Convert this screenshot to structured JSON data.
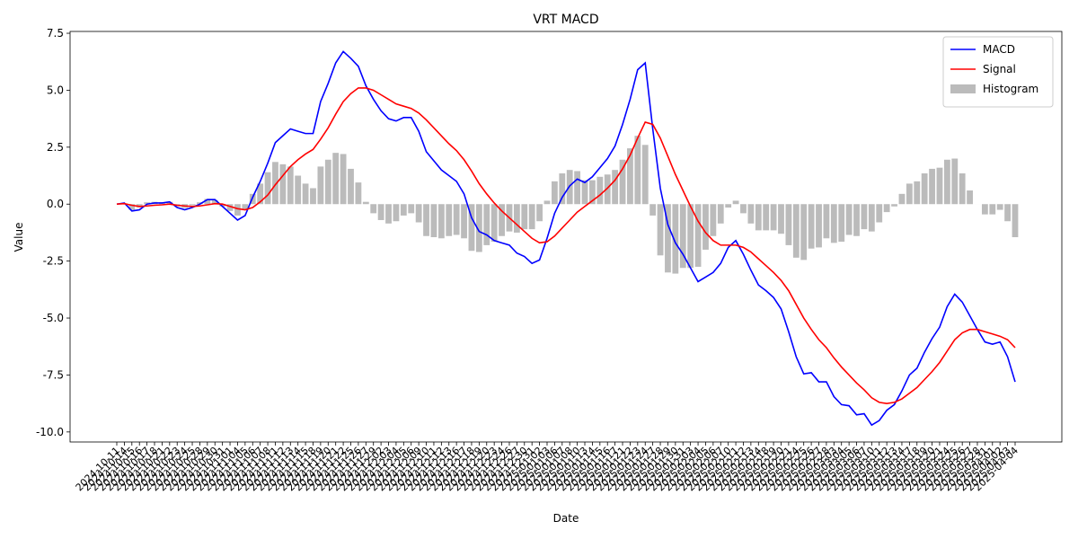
{
  "chart_data": {
    "type": "macd",
    "title": "VRT MACD",
    "x_label": "Date",
    "y_label": "Value",
    "categories": [
      "2024-10-11",
      "2024-10-14",
      "2024-10-15",
      "2024-10-16",
      "2024-10-17",
      "2024-10-18",
      "2024-10-21",
      "2024-10-22",
      "2024-10-23",
      "2024-10-24",
      "2024-10-25",
      "2024-10-28",
      "2024-10-29",
      "2024-10-30",
      "2024-10-31",
      "2024-11-01",
      "2024-11-04",
      "2024-11-05",
      "2024-11-06",
      "2024-11-07",
      "2024-11-08",
      "2024-11-11",
      "2024-11-12",
      "2024-11-13",
      "2024-11-14",
      "2024-11-15",
      "2024-11-18",
      "2024-11-19",
      "2024-11-20",
      "2024-11-21",
      "2024-11-22",
      "2024-11-25",
      "2024-11-26",
      "2024-11-27",
      "2024-11-29",
      "2024-12-02",
      "2024-12-03",
      "2024-12-04",
      "2024-12-05",
      "2024-12-06",
      "2024-12-09",
      "2024-12-10",
      "2024-12-11",
      "2024-12-12",
      "2024-12-13",
      "2024-12-16",
      "2024-12-17",
      "2024-12-18",
      "2024-12-19",
      "2024-12-20",
      "2024-12-23",
      "2024-12-24",
      "2024-12-26",
      "2024-12-27",
      "2024-12-30",
      "2024-12-31",
      "2025-01-02",
      "2025-01-03",
      "2025-01-06",
      "2025-01-07",
      "2025-01-08",
      "2025-01-10",
      "2025-01-13",
      "2025-01-14",
      "2025-01-15",
      "2025-01-16",
      "2025-01-17",
      "2025-01-21",
      "2025-01-22",
      "2025-01-23",
      "2025-01-24",
      "2025-01-27",
      "2025-01-28",
      "2025-01-29",
      "2025-01-30",
      "2025-01-31",
      "2025-02-03",
      "2025-02-04",
      "2025-02-05",
      "2025-02-06",
      "2025-02-07",
      "2025-02-10",
      "2025-02-11",
      "2025-02-12",
      "2025-02-13",
      "2025-02-14",
      "2025-02-18",
      "2025-02-19",
      "2025-02-20",
      "2025-02-21",
      "2025-02-24",
      "2025-02-25",
      "2025-02-26",
      "2025-02-27",
      "2025-02-28",
      "2025-03-03",
      "2025-03-04",
      "2025-03-05",
      "2025-03-06",
      "2025-03-07",
      "2025-03-10",
      "2025-03-11",
      "2025-03-12",
      "2025-03-13",
      "2025-03-14",
      "2025-03-17",
      "2025-03-18",
      "2025-03-19",
      "2025-03-20",
      "2025-03-21",
      "2025-03-24",
      "2025-03-25",
      "2025-03-26",
      "2025-03-27",
      "2025-03-28",
      "2025-03-31",
      "2025-04-01",
      "2025-04-02",
      "2025-04-03",
      "2025-04-04"
    ],
    "series": [
      {
        "name": "MACD",
        "color": "#0000ff",
        "kind": "line",
        "values": [
          0.0,
          0.05,
          -0.3,
          -0.25,
          0.0,
          0.05,
          0.05,
          0.1,
          -0.15,
          -0.25,
          -0.15,
          0.0,
          0.2,
          0.2,
          -0.1,
          -0.4,
          -0.7,
          -0.5,
          0.3,
          1.0,
          1.8,
          2.7,
          3.0,
          3.3,
          3.2,
          3.1,
          3.1,
          4.5,
          5.3,
          6.2,
          6.7,
          6.4,
          6.05,
          5.2,
          4.6,
          4.1,
          3.75,
          3.65,
          3.8,
          3.8,
          3.2,
          2.3,
          1.9,
          1.5,
          1.25,
          1.0,
          0.45,
          -0.6,
          -1.2,
          -1.35,
          -1.6,
          -1.7,
          -1.8,
          -2.15,
          -2.3,
          -2.6,
          -2.45,
          -1.5,
          -0.4,
          0.3,
          0.8,
          1.1,
          0.95,
          1.2,
          1.6,
          2.0,
          2.55,
          3.5,
          4.6,
          5.9,
          6.2,
          3.3,
          0.7,
          -0.9,
          -1.7,
          -2.2,
          -2.8,
          -3.4,
          -3.2,
          -3.0,
          -2.6,
          -1.9,
          -1.6,
          -2.2,
          -2.9,
          -3.55,
          -3.8,
          -4.1,
          -4.6,
          -5.6,
          -6.7,
          -7.45,
          -7.4,
          -7.8,
          -7.8,
          -8.45,
          -8.8,
          -8.85,
          -9.25,
          -9.2,
          -9.7,
          -9.5,
          -9.05,
          -8.8,
          -8.2,
          -7.5,
          -7.2,
          -6.5,
          -5.9,
          -5.4,
          -4.5,
          -3.95,
          -4.3,
          -4.9,
          -5.5,
          -6.05,
          -6.15,
          -6.05,
          -6.7,
          -7.8
        ]
      },
      {
        "name": "Signal",
        "color": "#ff0000",
        "kind": "line",
        "values": [
          0.0,
          0.02,
          -0.05,
          -0.1,
          -0.08,
          -0.05,
          -0.03,
          0.0,
          -0.05,
          -0.08,
          -0.1,
          -0.08,
          -0.03,
          0.02,
          0.0,
          -0.1,
          -0.2,
          -0.25,
          -0.15,
          0.1,
          0.4,
          0.85,
          1.25,
          1.65,
          1.95,
          2.2,
          2.4,
          2.85,
          3.35,
          3.95,
          4.5,
          4.85,
          5.1,
          5.1,
          5.0,
          4.8,
          4.6,
          4.4,
          4.3,
          4.2,
          4.0,
          3.7,
          3.35,
          3.0,
          2.65,
          2.35,
          1.95,
          1.45,
          0.9,
          0.45,
          0.05,
          -0.3,
          -0.6,
          -0.9,
          -1.2,
          -1.5,
          -1.7,
          -1.65,
          -1.4,
          -1.05,
          -0.7,
          -0.35,
          -0.1,
          0.15,
          0.4,
          0.7,
          1.05,
          1.55,
          2.15,
          2.9,
          3.6,
          3.5,
          2.9,
          2.1,
          1.3,
          0.6,
          -0.1,
          -0.75,
          -1.25,
          -1.6,
          -1.8,
          -1.8,
          -1.8,
          -1.9,
          -2.1,
          -2.4,
          -2.7,
          -3.0,
          -3.35,
          -3.8,
          -4.4,
          -5.0,
          -5.5,
          -5.95,
          -6.3,
          -6.75,
          -7.15,
          -7.5,
          -7.85,
          -8.15,
          -8.5,
          -8.7,
          -8.75,
          -8.7,
          -8.55,
          -8.3,
          -8.05,
          -7.7,
          -7.35,
          -6.95,
          -6.45,
          -5.95,
          -5.65,
          -5.5,
          -5.5,
          -5.6,
          -5.7,
          -5.8,
          -5.95,
          -6.3
        ]
      },
      {
        "name": "Histogram",
        "color": "#bbbbbb",
        "kind": "bar",
        "values": [
          0.0,
          0.03,
          -0.25,
          -0.15,
          0.08,
          0.1,
          0.08,
          0.1,
          -0.1,
          -0.17,
          -0.05,
          0.08,
          0.23,
          0.18,
          -0.1,
          -0.3,
          -0.5,
          -0.25,
          0.45,
          0.9,
          1.4,
          1.85,
          1.75,
          1.65,
          1.25,
          0.9,
          0.7,
          1.65,
          1.95,
          2.25,
          2.2,
          1.55,
          0.95,
          0.1,
          -0.4,
          -0.7,
          -0.85,
          -0.75,
          -0.5,
          -0.4,
          -0.8,
          -1.4,
          -1.45,
          -1.5,
          -1.4,
          -1.35,
          -1.5,
          -2.05,
          -2.1,
          -1.8,
          -1.65,
          -1.4,
          -1.2,
          -1.25,
          -1.1,
          -1.1,
          -0.75,
          0.15,
          1.0,
          1.35,
          1.5,
          1.45,
          1.05,
          1.05,
          1.2,
          1.3,
          1.5,
          1.95,
          2.45,
          3.0,
          2.6,
          -0.5,
          -2.25,
          -3.0,
          -3.05,
          -2.8,
          -2.8,
          -2.75,
          -2.0,
          -1.4,
          -0.85,
          -0.15,
          0.15,
          -0.4,
          -0.85,
          -1.15,
          -1.15,
          -1.15,
          -1.3,
          -1.8,
          -2.35,
          -2.45,
          -1.95,
          -1.9,
          -1.5,
          -1.7,
          -1.65,
          -1.35,
          -1.4,
          -1.1,
          -1.2,
          -0.8,
          -0.35,
          -0.1,
          0.45,
          0.9,
          1.0,
          1.35,
          1.55,
          1.6,
          1.95,
          2.0,
          1.35,
          0.6,
          0.0,
          -0.45,
          -0.45,
          -0.25,
          -0.75,
          -1.45
        ]
      }
    ],
    "ylim": [
      -10.44,
      7.58
    ],
    "yticks": [
      {
        "value": -10,
        "label": "-10.0"
      },
      -7.5,
      {
        "value": -5,
        "label": "-5.0"
      },
      -2.5,
      {
        "value": 0,
        "label": "0.0"
      },
      2.5,
      {
        "value": 5,
        "label": "5.0"
      },
      7.5
    ],
    "legend": "upper right",
    "grid": false
  }
}
